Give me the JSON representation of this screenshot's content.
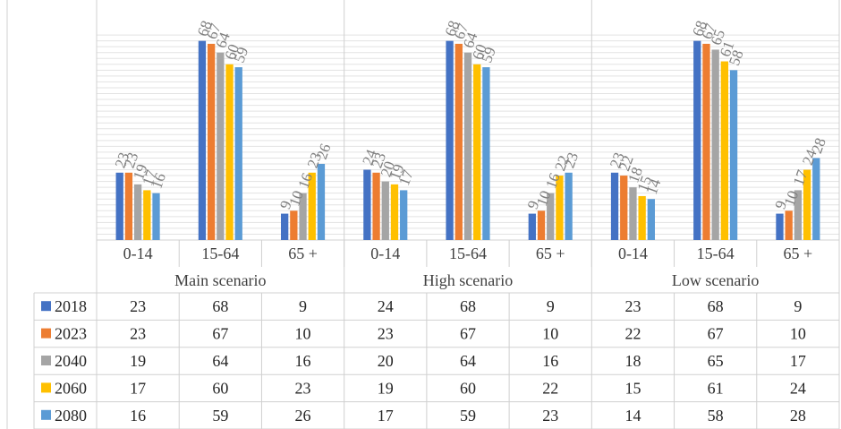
{
  "chart_data": {
    "type": "bar",
    "groups": [
      {
        "label": "Main scenario",
        "categories": [
          "0-14",
          "15-64",
          "65 +"
        ]
      },
      {
        "label": "High scenario",
        "categories": [
          "0-14",
          "15-64",
          "65 +"
        ]
      },
      {
        "label": "Low scenario",
        "categories": [
          "0-14",
          "15-64",
          "65 +"
        ]
      }
    ],
    "series": [
      {
        "name": "2018",
        "color": "#4472c4",
        "values": [
          23,
          68,
          9,
          24,
          68,
          9,
          23,
          68,
          9
        ]
      },
      {
        "name": "2023",
        "color": "#ed7d31",
        "values": [
          23,
          67,
          10,
          23,
          67,
          10,
          22,
          67,
          10
        ]
      },
      {
        "name": "2040",
        "color": "#a5a5a5",
        "values": [
          19,
          64,
          16,
          20,
          64,
          16,
          18,
          65,
          17
        ]
      },
      {
        "name": "2060",
        "color": "#ffc000",
        "values": [
          17,
          60,
          23,
          19,
          60,
          22,
          15,
          61,
          24
        ]
      },
      {
        "name": "2080",
        "color": "#5b9bd5",
        "values": [
          16,
          59,
          26,
          17,
          59,
          23,
          14,
          58,
          28
        ]
      }
    ],
    "ylim": [
      0,
      70
    ],
    "grid": true,
    "legend": "data-table",
    "data_table": true
  }
}
